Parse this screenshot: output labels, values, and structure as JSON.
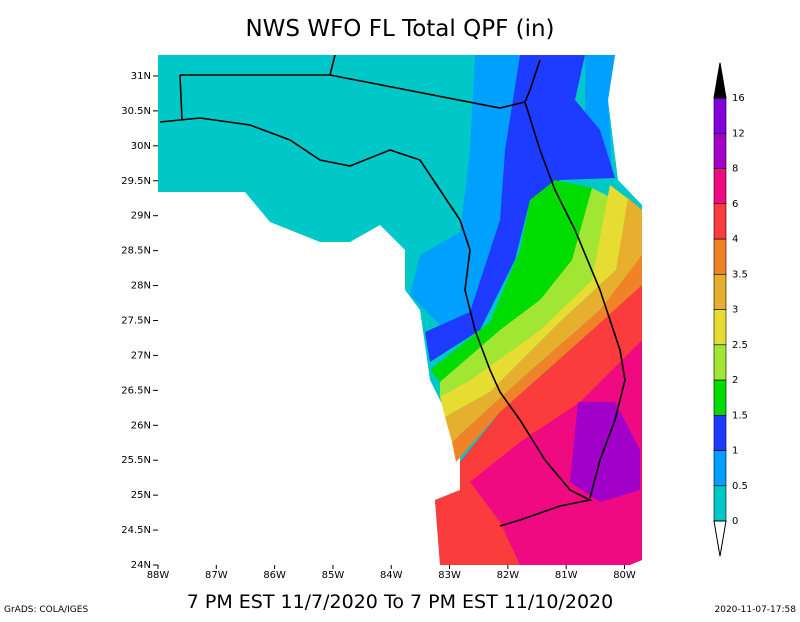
{
  "map": {
    "title": "NWS WFO FL Total QPF (in)",
    "subtitle": "7 PM EST 11/7/2020 To 7 PM EST 11/10/2020",
    "footer_left": "GrADS: COLA/IGES",
    "footer_right": "2020-11-07-17:58",
    "latlim": [
      24,
      31.3
    ],
    "lonlim": [
      -88,
      -79.7
    ],
    "lat_ticks": [
      {
        "value": 31,
        "label": "31N"
      },
      {
        "value": 30.5,
        "label": "30.5N"
      },
      {
        "value": 30,
        "label": "30N"
      },
      {
        "value": 29.5,
        "label": "29.5N"
      },
      {
        "value": 29,
        "label": "29N"
      },
      {
        "value": 28.5,
        "label": "28.5N"
      },
      {
        "value": 28,
        "label": "28N"
      },
      {
        "value": 27.5,
        "label": "27.5N"
      },
      {
        "value": 27,
        "label": "27N"
      },
      {
        "value": 26.5,
        "label": "26.5N"
      },
      {
        "value": 26,
        "label": "26N"
      },
      {
        "value": 25.5,
        "label": "25.5N"
      },
      {
        "value": 25,
        "label": "25N"
      },
      {
        "value": 24.5,
        "label": "24.5N"
      },
      {
        "value": 24,
        "label": "24N"
      }
    ],
    "lon_ticks": [
      {
        "value": -88,
        "label": "88W"
      },
      {
        "value": -87,
        "label": "87W"
      },
      {
        "value": -86,
        "label": "86W"
      },
      {
        "value": -85,
        "label": "85W"
      },
      {
        "value": -84,
        "label": "84W"
      },
      {
        "value": -83,
        "label": "83W"
      },
      {
        "value": -82,
        "label": "82W"
      },
      {
        "value": -81,
        "label": "81W"
      },
      {
        "value": -80,
        "label": "80W"
      }
    ],
    "colorbar": {
      "levels": [
        0,
        0.5,
        1,
        1.5,
        2,
        2.5,
        3,
        3.5,
        4,
        6,
        8,
        12,
        16
      ],
      "colors": [
        "#00c8c8",
        "#00a0ff",
        "#1e3cff",
        "#00dc00",
        "#a0e632",
        "#e6dc32",
        "#e6af2d",
        "#f08228",
        "#fa3c3c",
        "#f00a82",
        "#a000c8",
        "#8200dc"
      ],
      "under_color": "#ffffff",
      "over_color": "#000000"
    }
  }
}
